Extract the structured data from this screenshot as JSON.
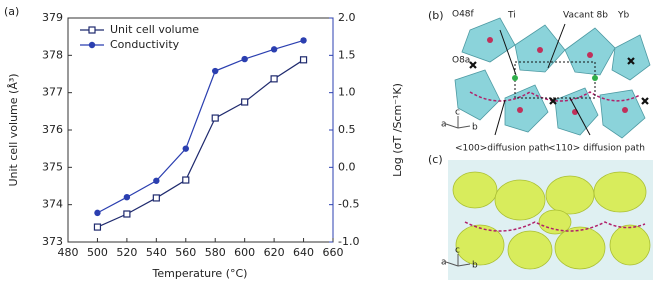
{
  "chart_data": {
    "type": "line",
    "panel_label": "(a)",
    "x_label": "Temperature (°C)",
    "y_label": "Unit cell volume (Å³)",
    "y2_label": "Log (σT /Scm⁻¹K)",
    "x": [
      500,
      520,
      540,
      560,
      580,
      600,
      620,
      640
    ],
    "series": [
      {
        "name": "Unit cell volume",
        "color": "#1f2a6e",
        "marker": "square",
        "values": [
          373.4,
          373.75,
          374.18,
          374.66,
          376.32,
          376.75,
          377.37,
          377.88
        ]
      },
      {
        "name": "Conductivity",
        "color": "#2b3fb0",
        "marker": "circle",
        "axis": "y2",
        "values": [
          -0.61,
          -0.4,
          -0.18,
          0.25,
          1.29,
          1.45,
          1.58,
          1.7
        ]
      }
    ],
    "xlim": [
      480,
      660
    ],
    "xticks": [
      480,
      500,
      520,
      540,
      560,
      580,
      600,
      620,
      640,
      660
    ],
    "ylim": [
      373,
      379
    ],
    "yticks": [
      373,
      374,
      375,
      376,
      377,
      378,
      379
    ],
    "y2lim": [
      -1,
      2
    ],
    "y2ticks": [
      {
        "value": -1,
        "label": "-1.0"
      },
      -0.5,
      {
        "value": 0,
        "label": "0.0"
      },
      0.5,
      {
        "value": 1,
        "label": "1.0"
      },
      1.5,
      {
        "value": 2,
        "label": "2.0"
      }
    ],
    "legend": "upper left"
  },
  "panels": {
    "b": {
      "label": "(b)",
      "annotations": [
        "O48f",
        "Ti",
        "Vacant 8b",
        "Yb",
        "O8a",
        "<100>diffusion path",
        "<110> diffusion path"
      ],
      "axes": [
        "a",
        "b",
        "c"
      ]
    },
    "c": {
      "label": "(c)",
      "axes": [
        "a",
        "b",
        "c"
      ]
    }
  }
}
